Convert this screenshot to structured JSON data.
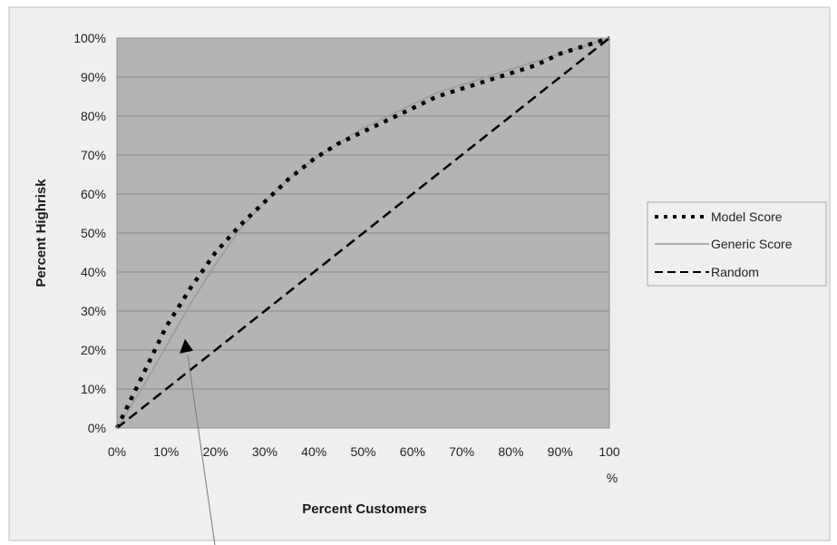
{
  "chart_data": {
    "type": "line",
    "title": "",
    "xlabel": "Percent Customers",
    "ylabel": "Percent Highrisk",
    "xlim": [
      0,
      100
    ],
    "ylim": [
      0,
      100
    ],
    "x_ticks": [
      "0%",
      "10%",
      "20%",
      "30%",
      "40%",
      "50%",
      "60%",
      "70%",
      "80%",
      "90%",
      "100"
    ],
    "x_tick_extra": "%",
    "y_ticks": [
      "0%",
      "10%",
      "20%",
      "30%",
      "40%",
      "50%",
      "60%",
      "70%",
      "80%",
      "90%",
      "100%"
    ],
    "grid": "horizontal",
    "legend_position": "right",
    "plot_background": "#b4b4b4",
    "series": [
      {
        "name": "Model Score",
        "line_style": "dotted",
        "color": "#000000",
        "x": [
          0,
          5,
          10,
          15,
          20,
          25,
          30,
          35,
          40,
          45,
          50,
          55,
          60,
          65,
          70,
          75,
          80,
          85,
          90,
          95,
          100
        ],
        "y": [
          0,
          13,
          26,
          36,
          45,
          52,
          58,
          64,
          69,
          73,
          76,
          79,
          82,
          85,
          87,
          89,
          91,
          93,
          96,
          98,
          100
        ]
      },
      {
        "name": "Generic Score",
        "line_style": "solid",
        "color": "#9a9a9a",
        "x": [
          0,
          5,
          10,
          15,
          20,
          25,
          30,
          35,
          40,
          45,
          50,
          55,
          60,
          65,
          70,
          75,
          80,
          85,
          90,
          95,
          100
        ],
        "y": [
          0,
          10,
          21,
          32,
          42,
          51,
          58,
          64,
          69,
          73,
          77,
          80,
          83,
          86,
          88,
          90,
          92,
          94,
          96,
          98,
          100
        ]
      },
      {
        "name": "Random",
        "line_style": "dashed",
        "color": "#000000",
        "x": [
          0,
          100
        ],
        "y": [
          0,
          100
        ]
      }
    ],
    "annotation": {
      "type": "arrow",
      "target": {
        "x": 14,
        "y": 21
      }
    }
  }
}
